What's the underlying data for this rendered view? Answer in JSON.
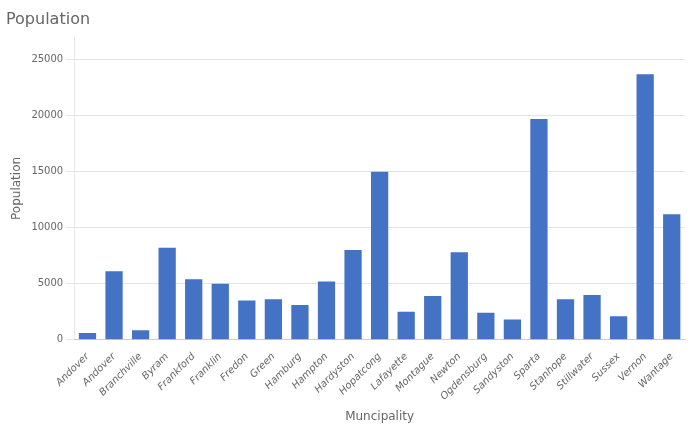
{
  "chart_data": {
    "type": "bar",
    "title": "Population",
    "xlabel": "Muncipality",
    "ylabel": "Population",
    "categories": [
      "Andover",
      "Andover",
      "Branchville",
      "Byram",
      "Frankford",
      "Franklin",
      "Fredon",
      "Green",
      "Hamburg",
      "Hampton",
      "Hardyston",
      "Hopatcong",
      "Lafayette",
      "Montague",
      "Newton",
      "Ogdensburg",
      "Sandyston",
      "Sparta",
      "Stanhope",
      "Stillwater",
      "Sussex",
      "Vernon",
      "Wantage"
    ],
    "values": [
      600,
      6100,
      850,
      8200,
      5400,
      5000,
      3500,
      3600,
      3100,
      5200,
      8000,
      15000,
      2500,
      3900,
      7800,
      2400,
      1800,
      19700,
      3600,
      4000,
      2100,
      23700,
      11200
    ],
    "color": "#4472C4",
    "ylim": [
      0,
      27000
    ],
    "yticks": [
      0,
      5000,
      10000,
      15000,
      20000,
      25000
    ],
    "grid": true
  }
}
